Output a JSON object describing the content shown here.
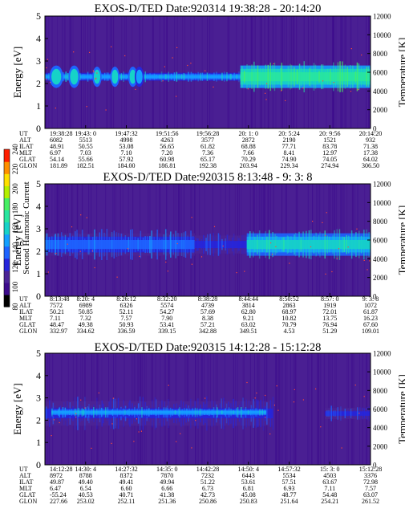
{
  "colors": {
    "background": "#4a1f93",
    "colormap": [
      "#000000",
      "#3c0a8c",
      "#4b2496",
      "#2626dc",
      "#1e64ff",
      "#14a0ff",
      "#16d2c8",
      "#28e6a0",
      "#46f064",
      "#b4f000",
      "#ffe000",
      "#ff9000",
      "#ff1e00"
    ],
    "noise_dot": "#ff4a3a"
  },
  "colorbar": {
    "label": "Second Harmonic Current",
    "ticks": [
      "80",
      "100",
      "120",
      "140",
      "160",
      "180",
      "200",
      "220",
      "240"
    ]
  },
  "chart_data": [
    {
      "type": "heatmap",
      "title": "EXOS-D/TED   Date:920314  19:38:28 - 20:14:20",
      "ylabel": "Energy [eV]",
      "y2label": "Temperature [K]",
      "ylim": [
        0,
        5
      ],
      "y2lim": [
        0,
        12000
      ],
      "yticks": [
        "0",
        "1",
        "2",
        "3",
        "4",
        "5"
      ],
      "y2ticks": [
        "0",
        "2000",
        "4000",
        "6000",
        "8000",
        "10000",
        "12000"
      ],
      "ephemeris_labels": [
        "UT",
        "ALT",
        "ILAT",
        "MLT",
        "GLAT",
        "GLON"
      ],
      "ephemeris": [
        [
          "19:38:28",
          "6082",
          "48.91",
          "6.97",
          "54.14",
          "181.89"
        ],
        [
          "19:43: 0",
          "5513",
          "50.55",
          "7.03",
          "55.66",
          "182.51"
        ],
        [
          "19:47:32",
          "4998",
          "53.08",
          "7.10",
          "57.92",
          "184.00"
        ],
        [
          "19:51:56",
          "4263",
          "56.65",
          "7.20",
          "60.98",
          "186.81"
        ],
        [
          "19:56:28",
          "3577",
          "61.82",
          "7.36",
          "65.17",
          "192.38"
        ],
        [
          "20: 1: 0",
          "2872",
          "68.88",
          "7.66",
          "70.29",
          "203.94"
        ],
        [
          "20: 5:24",
          "2190",
          "77.71",
          "8.41",
          "74.90",
          "229.34"
        ],
        [
          "20: 9:56",
          "1521",
          "83.78",
          "12.97",
          "74.05",
          "274.94"
        ],
        [
          "20:14:20",
          "932",
          "71.38",
          "17.38",
          "64.02",
          "306.50"
        ]
      ],
      "bands": [
        {
          "x0": 0.0,
          "x1": 0.6,
          "ymid": 2.3,
          "width": 0.35,
          "level": 5,
          "x0_ramp": 0.0
        },
        {
          "x0": 0.6,
          "x1": 1.0,
          "ymid": 2.3,
          "width": 1.0,
          "level": 7,
          "x0_ramp": 0.02
        }
      ],
      "blobs": [
        {
          "x": 0.035,
          "y": 2.3,
          "w": 0.03,
          "h": 0.5,
          "level": 6
        },
        {
          "x": 0.09,
          "y": 2.3,
          "w": 0.025,
          "h": 0.5,
          "level": 6
        },
        {
          "x": 0.16,
          "y": 2.3,
          "w": 0.02,
          "h": 0.45,
          "level": 6
        },
        {
          "x": 0.215,
          "y": 2.3,
          "w": 0.02,
          "h": 0.45,
          "level": 6
        },
        {
          "x": 0.27,
          "y": 2.3,
          "w": 0.02,
          "h": 0.45,
          "level": 6
        },
        {
          "x": 0.29,
          "y": 2.3,
          "w": 0.02,
          "h": 0.45,
          "level": 5
        }
      ]
    },
    {
      "type": "heatmap",
      "title": "EXOS-D/TED   Date:920315  8:13:48 - 9: 3: 8",
      "ylabel": "Energy [eV]",
      "y2label": "Temperature [K]",
      "ylim": [
        0,
        5
      ],
      "y2lim": [
        0,
        12000
      ],
      "yticks": [
        "0",
        "1",
        "2",
        "3",
        "4",
        "5"
      ],
      "y2ticks": [
        "0",
        "2000",
        "4000",
        "6000",
        "8000",
        "10000",
        "12000"
      ],
      "ephemeris_labels": [
        "UT",
        "ALT",
        "ILAT",
        "MLT",
        "GLAT",
        "GLON"
      ],
      "ephemeris": [
        [
          "8:13:48",
          "7572",
          "50.21",
          "7.11",
          "48.47",
          "332.97"
        ],
        [
          "8:20: 4",
          "6989",
          "50.85",
          "7.32",
          "49.38",
          "334.62"
        ],
        [
          "8:26:12",
          "6326",
          "52.11",
          "7.57",
          "50.93",
          "336.59"
        ],
        [
          "8:32:20",
          "5574",
          "54.27",
          "7.90",
          "53.41",
          "339.15"
        ],
        [
          "8:38:28",
          "4739",
          "57.69",
          "8.38",
          "57.21",
          "342.88"
        ],
        [
          "8:44:44",
          "3814",
          "62.80",
          "9.21",
          "63.02",
          "349.51"
        ],
        [
          "8:50:52",
          "2863",
          "68.97",
          "10.82",
          "70.79",
          "4.53"
        ],
        [
          "8:57: 0",
          "1919",
          "72.01",
          "13.75",
          "76.94",
          "51.29"
        ],
        [
          "9: 3: 8",
          "1072",
          "61.87",
          "16.23",
          "67.60",
          "109.01"
        ]
      ],
      "bands": [
        {
          "x0": 0.0,
          "x1": 0.46,
          "ymid": 2.3,
          "width": 1.0,
          "level": 4,
          "x0_ramp": 0.0
        },
        {
          "x0": 0.46,
          "x1": 0.62,
          "ymid": 2.3,
          "width": 0.8,
          "level": 3,
          "x0_ramp": 0.0
        },
        {
          "x0": 0.62,
          "x1": 1.0,
          "ymid": 2.3,
          "width": 1.0,
          "level": 6,
          "x0_ramp": 0.02
        }
      ],
      "blobs": []
    },
    {
      "type": "heatmap",
      "title": "EXOS-D/TED   Date:920315  14:12:28 - 15:12:28",
      "ylabel": "Energy [eV]",
      "y2label": "Temperature [K]",
      "ylim": [
        0,
        5
      ],
      "y2lim": [
        0,
        12000
      ],
      "yticks": [
        "0",
        "1",
        "2",
        "3",
        "4",
        "5"
      ],
      "y2ticks": [
        "0",
        "2000",
        "4000",
        "6000",
        "8000",
        "10000",
        "12000"
      ],
      "ephemeris_labels": [
        "UT",
        "ALT",
        "ILAT",
        "MLT",
        "GLAT",
        "GLON"
      ],
      "ephemeris": [
        [
          "14:12:28",
          "8972",
          "49.87",
          "6.47",
          "-55.24",
          "227.66"
        ],
        [
          "14:30: 4",
          "8788",
          "49.40",
          "6.54",
          "40.53",
          "253.02"
        ],
        [
          "14:27:32",
          "8372",
          "49.41",
          "6.60",
          "40.71",
          "252.11"
        ],
        [
          "14:35: 0",
          "7870",
          "49.94",
          "6.66",
          "41.38",
          "251.36"
        ],
        [
          "14:42:28",
          "7232",
          "51.22",
          "6.73",
          "42.73",
          "250.86"
        ],
        [
          "14:50: 4",
          "6443",
          "53.61",
          "6.81",
          "45.08",
          "250.83"
        ],
        [
          "14:57:32",
          "5534",
          "57.51",
          "6.93",
          "48.77",
          "251.64"
        ],
        [
          "15: 3: 0",
          "4503",
          "63.67",
          "7.11",
          "54.48",
          "254.21"
        ],
        [
          "15:12:28",
          "3376",
          "72.98",
          "7.57",
          "63.07",
          "261.52"
        ]
      ],
      "bands": [
        {
          "x0": 0.0,
          "x1": 0.7,
          "ymid": 2.3,
          "width": 1.1,
          "level": 3,
          "x0_ramp": 0.0
        },
        {
          "x0": 0.02,
          "x1": 0.68,
          "ymid": 2.35,
          "width": 0.35,
          "level": 5,
          "x0_ramp": 0.0
        },
        {
          "x0": 0.86,
          "x1": 1.0,
          "ymid": 2.3,
          "width": 0.5,
          "level": 3,
          "x0_ramp": 0.0
        }
      ],
      "blobs": []
    }
  ]
}
